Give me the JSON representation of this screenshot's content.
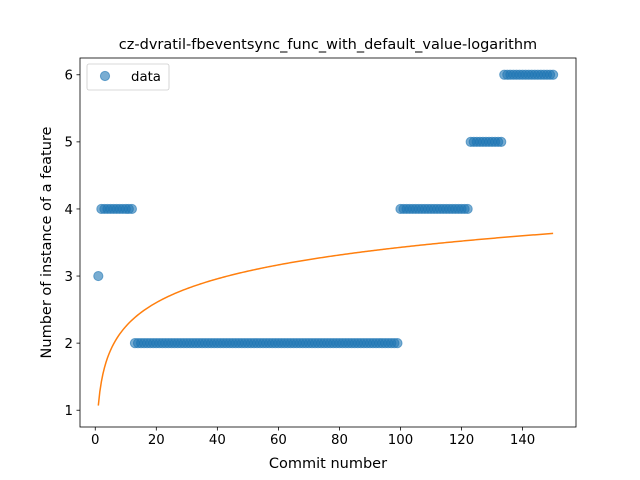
{
  "chart_data": {
    "type": "scatter",
    "title": "cz-dvratil-fbeventsync_func_with_default_value-logarithm",
    "xlabel": "Commit number",
    "ylabel": "Number of instance of a feature",
    "xlim": [
      -5,
      157.5
    ],
    "ylim": [
      0.75,
      6.25
    ],
    "xticks": [
      0,
      20,
      40,
      60,
      80,
      100,
      120,
      140
    ],
    "yticks": [
      1,
      2,
      3,
      4,
      5,
      6
    ],
    "grid": false,
    "legend": {
      "position": "top-left",
      "entries": [
        "data"
      ]
    },
    "colors": {
      "points": "#1f77b4",
      "fit": "#ff7f0e"
    },
    "series": [
      {
        "name": "data",
        "kind": "scatter",
        "segments": [
          {
            "x_start": 1,
            "x_end": 1,
            "y": 3
          },
          {
            "x_start": 2,
            "x_end": 12,
            "y": 4
          },
          {
            "x_start": 13,
            "x_end": 99,
            "y": 2
          },
          {
            "x_start": 100,
            "x_end": 122,
            "y": 4
          },
          {
            "x_start": 123,
            "x_end": 133,
            "y": 5
          },
          {
            "x_start": 134,
            "x_end": 150,
            "y": 6
          }
        ]
      },
      {
        "kind": "line",
        "model": "logarithmic",
        "intercept": 1.07,
        "slope": 0.512,
        "x_range": [
          1,
          150
        ]
      }
    ]
  }
}
